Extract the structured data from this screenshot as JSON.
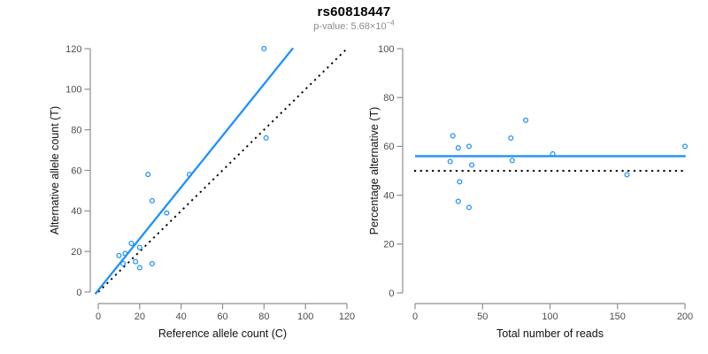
{
  "title": "rs60818447",
  "subtitle": {
    "text": "p-value: 5.68×10",
    "exponent": "−4"
  },
  "colors": {
    "accent_blue": "#1E90FF",
    "dotted_black": "#000000",
    "axis_gray": "#909090",
    "tick_text": "#4d4d4d",
    "axis_title_text": "#111111",
    "subtitle_gray": "#8c8c8c"
  },
  "chart_data": [
    {
      "name": "allele-counts-scatter",
      "type": "scatter",
      "xlabel": "Reference allele count (C)",
      "ylabel": "Alternative allele count (T)",
      "xlim": [
        0,
        120
      ],
      "ylim": [
        0,
        120
      ],
      "xticks": [
        0,
        20,
        40,
        60,
        80,
        100,
        120
      ],
      "yticks": [
        0,
        20,
        40,
        60,
        80,
        100,
        120
      ],
      "grid": false,
      "legend": null,
      "marker": "open-circle",
      "points": [
        [
          80,
          120
        ],
        [
          81,
          76
        ],
        [
          44,
          58
        ],
        [
          24,
          58
        ],
        [
          26,
          45
        ],
        [
          33,
          39
        ],
        [
          16,
          24
        ],
        [
          20,
          22
        ],
        [
          10,
          18
        ],
        [
          13,
          19
        ],
        [
          12,
          14
        ],
        [
          18,
          15
        ],
        [
          20,
          12
        ],
        [
          26,
          14
        ]
      ],
      "lines": [
        {
          "name": "identity-line",
          "style": "dotted",
          "color": "#000000",
          "x": [
            0,
            119.5
          ],
          "y": [
            0,
            119.5
          ]
        },
        {
          "name": "fit-line",
          "style": "solid",
          "color": "#1E90FF",
          "x": [
            -1.5,
            94
          ],
          "y": [
            -1,
            120.3
          ]
        }
      ]
    },
    {
      "name": "percentage-vs-reads-scatter",
      "type": "scatter",
      "xlabel": "Total number of reads",
      "ylabel": "Percentage alternative (T)",
      "xlim": [
        0,
        200
      ],
      "ylim": [
        0,
        100
      ],
      "xticks": [
        0,
        50,
        100,
        150,
        200
      ],
      "yticks": [
        0,
        20,
        40,
        60,
        80,
        100
      ],
      "grid": false,
      "legend": null,
      "marker": "open-circle",
      "points": [
        [
          200,
          60
        ],
        [
          157,
          48.4
        ],
        [
          102,
          56.9
        ],
        [
          82,
          70.7
        ],
        [
          71,
          63.4
        ],
        [
          72,
          54.2
        ],
        [
          40,
          60
        ],
        [
          42,
          52.4
        ],
        [
          28,
          64.3
        ],
        [
          32,
          59.4
        ],
        [
          26,
          53.8
        ],
        [
          33,
          45.5
        ],
        [
          32,
          37.5
        ],
        [
          40,
          35
        ]
      ],
      "lines": [
        {
          "name": "null-50pct-line",
          "style": "dotted",
          "color": "#000000",
          "x": [
            -0.7,
            200.7
          ],
          "y": [
            50,
            50
          ]
        },
        {
          "name": "mean-pct-line",
          "style": "solid",
          "color": "#1E90FF",
          "x": [
            0,
            200.5
          ],
          "y": [
            56,
            56
          ]
        }
      ]
    }
  ]
}
